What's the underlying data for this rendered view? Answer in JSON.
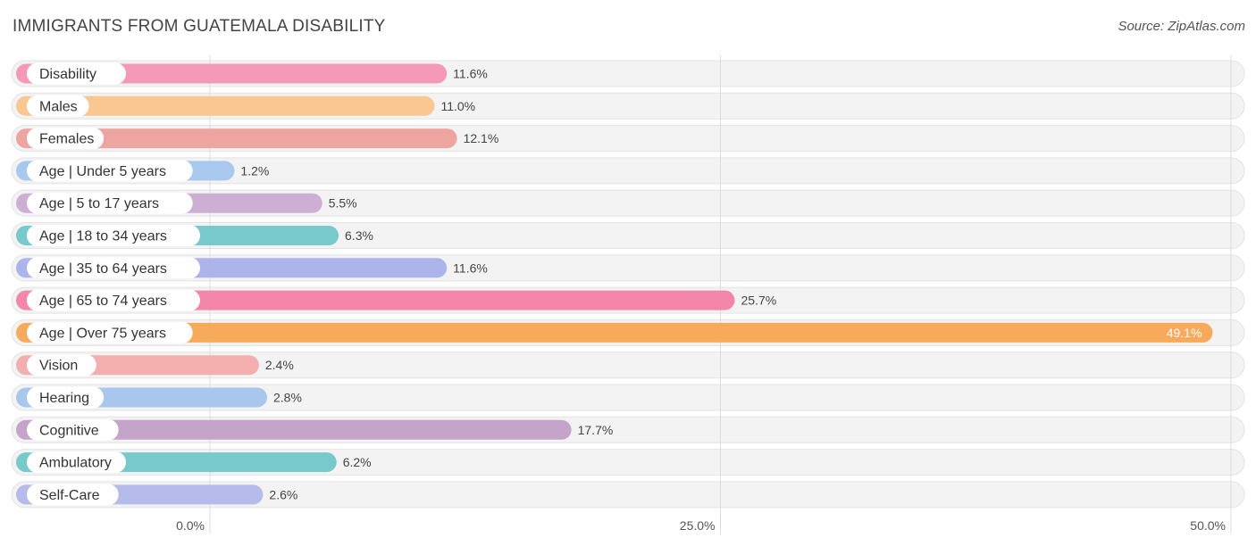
{
  "title": "IMMIGRANTS FROM GUATEMALA DISABILITY",
  "source": "Source: ZipAtlas.com",
  "chart_data": {
    "type": "bar",
    "orientation": "horizontal",
    "categories": [
      "Disability",
      "Males",
      "Females",
      "Age | Under 5 years",
      "Age | 5 to 17 years",
      "Age | 18 to 34 years",
      "Age | 35 to 64 years",
      "Age | 65 to 74 years",
      "Age | Over 75 years",
      "Vision",
      "Hearing",
      "Cognitive",
      "Ambulatory",
      "Self-Care"
    ],
    "values": [
      11.6,
      11.0,
      12.1,
      1.2,
      5.5,
      6.3,
      11.6,
      25.7,
      49.1,
      2.4,
      2.8,
      17.7,
      6.2,
      2.6
    ],
    "value_labels": [
      "11.6%",
      "11.0%",
      "12.1%",
      "1.2%",
      "5.5%",
      "6.3%",
      "11.6%",
      "25.7%",
      "49.1%",
      "2.4%",
      "2.8%",
      "17.7%",
      "6.2%",
      "2.6%"
    ],
    "colors": [
      "#f49ab8",
      "#fac793",
      "#eea5a2",
      "#a9c8ee",
      "#cdafd4",
      "#77c9cc",
      "#acb4eb",
      "#f486a9",
      "#f7aa5c",
      "#f3aeae",
      "#a9c7ec",
      "#c4a4ca",
      "#77c9cc",
      "#b5bcec"
    ],
    "xlim": [
      0,
      50
    ],
    "x_ticks": [
      0,
      25,
      50
    ],
    "x_tick_labels": [
      "0.0%",
      "25.0%",
      "50.0%"
    ],
    "grid": true,
    "track_color": "#f3f3f3",
    "grid_color": "#dddddd"
  }
}
